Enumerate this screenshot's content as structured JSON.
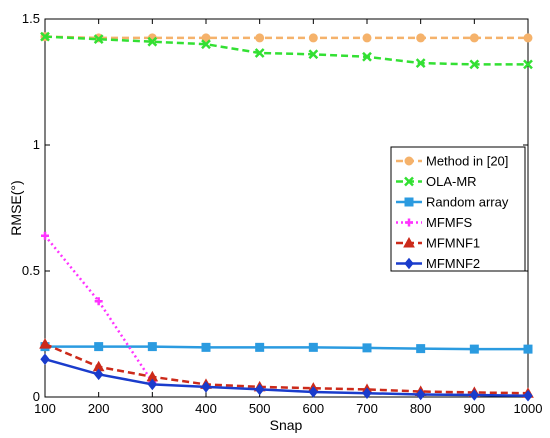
{
  "chart_data": {
    "type": "line",
    "xlabel": "Snap",
    "ylabel": "RMSE(°)",
    "xlim": [
      100,
      1000
    ],
    "ylim": [
      0,
      1.5
    ],
    "x_ticks": [
      "100",
      "200",
      "300",
      "400",
      "500",
      "600",
      "700",
      "800",
      "900",
      "1000"
    ],
    "y_ticks": [
      "0",
      "0.5",
      "1",
      "1.5"
    ],
    "x": [
      100,
      200,
      300,
      400,
      500,
      600,
      700,
      800,
      900,
      1000
    ],
    "grid": false,
    "legend_position": "right",
    "series": [
      {
        "name": "Method in [20]",
        "color": "#f5b26b",
        "dash": "dash",
        "marker": "circle",
        "values": [
          1.43,
          1.425,
          1.425,
          1.425,
          1.425,
          1.425,
          1.425,
          1.425,
          1.425,
          1.425
        ]
      },
      {
        "name": "OLA-MR",
        "color": "#33e033",
        "dash": "dash",
        "marker": "x",
        "values": [
          1.43,
          1.42,
          1.41,
          1.4,
          1.365,
          1.36,
          1.35,
          1.325,
          1.32,
          1.32
        ]
      },
      {
        "name": "Random array",
        "color": "#2b9be0",
        "dash": "solid",
        "marker": "square",
        "values": [
          0.2,
          0.2,
          0.2,
          0.197,
          0.197,
          0.197,
          0.195,
          0.192,
          0.19,
          0.19
        ]
      },
      {
        "name": "MFMFS",
        "color": "#ff33ff",
        "dash": "dot",
        "marker": "plus",
        "x": [
          100,
          200,
          300
        ],
        "values": [
          0.64,
          0.38,
          0.06
        ]
      },
      {
        "name": "MFMNF1",
        "color": "#cc2a1a",
        "dash": "dash",
        "marker": "triangle",
        "values": [
          0.21,
          0.12,
          0.08,
          0.05,
          0.04,
          0.035,
          0.03,
          0.022,
          0.018,
          0.015
        ]
      },
      {
        "name": "MFMNF2",
        "color": "#1a3ccc",
        "dash": "solid",
        "marker": "diamond",
        "values": [
          0.15,
          0.09,
          0.05,
          0.04,
          0.03,
          0.02,
          0.015,
          0.01,
          0.008,
          0.005
        ]
      }
    ]
  }
}
